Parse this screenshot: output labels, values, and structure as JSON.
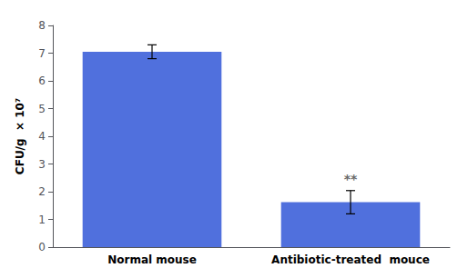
{
  "chart_data": {
    "type": "bar",
    "categories": [
      "Normal mouse",
      "Antibiotic-treated  mouce"
    ],
    "values": [
      7.05,
      1.62
    ],
    "errors": [
      0.25,
      0.42
    ],
    "ylabel": "CFU/g  × 10⁷",
    "ylim": [
      0,
      8
    ],
    "yticks": [
      0,
      1,
      2,
      3,
      4,
      5,
      6,
      7,
      8
    ],
    "grid": false,
    "annotations": [
      {
        "text": "**",
        "category": "Antibiotic-treated  mouce"
      }
    ]
  }
}
